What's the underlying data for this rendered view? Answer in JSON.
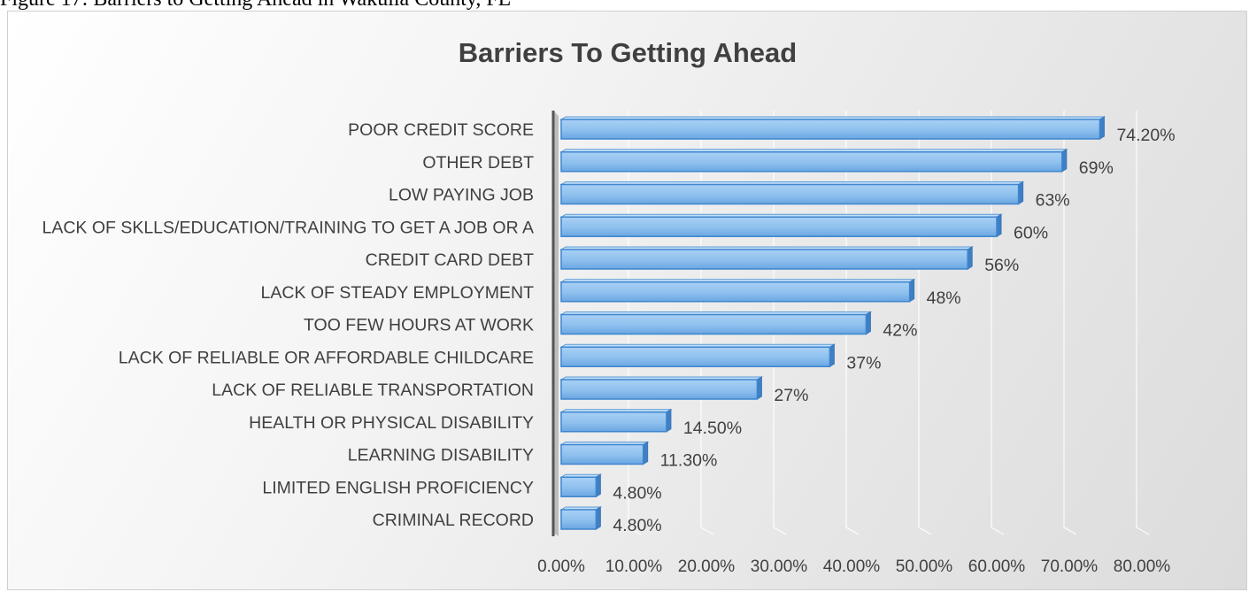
{
  "caption": "Figure 17: Barriers to Getting Ahead in Wakulla County, FL",
  "chart_data": {
    "type": "bar",
    "orientation": "horizontal",
    "title": "Barriers To Getting Ahead",
    "xlabel": "",
    "ylabel": "",
    "xlim": [
      0,
      80
    ],
    "grid": true,
    "legend": "none",
    "bar_color": "#5b9bd5",
    "x_ticks": [
      "0.00%",
      "10.00%",
      "20.00%",
      "30.00%",
      "40.00%",
      "50.00%",
      "60.00%",
      "70.00%",
      "80.00%"
    ],
    "categories": [
      "POOR CREDIT SCORE",
      "OTHER DEBT",
      "LOW PAYING JOB",
      "LACK OF SKLLS/EDUCATION/TRAINING TO GET A JOB OR A",
      "CREDIT CARD DEBT",
      "LACK OF STEADY EMPLOYMENT",
      "TOO FEW HOURS AT WORK",
      "LACK OF RELIABLE OR AFFORDABLE CHILDCARE",
      "LACK OF RELIABLE TRANSPORTATION",
      "HEALTH OR PHYSICAL DISABILITY",
      "LEARNING DISABILITY",
      "LIMITED ENGLISH PROFICIENCY",
      "CRIMINAL RECORD"
    ],
    "values": [
      74.2,
      69,
      63,
      60,
      56,
      48,
      42,
      37,
      27,
      14.5,
      11.3,
      4.8,
      4.8
    ],
    "labels": [
      "74.20%",
      "69%",
      "63%",
      "60%",
      "56%",
      "48%",
      "42%",
      "37%",
      "27%",
      "14.50%",
      "11.30%",
      "4.80%",
      "4.80%"
    ]
  }
}
